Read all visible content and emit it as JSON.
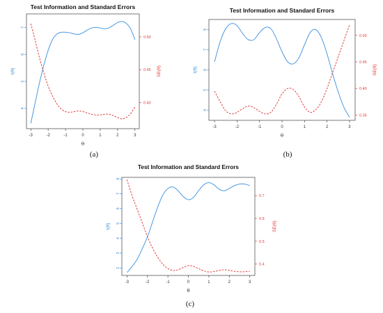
{
  "colors": {
    "info": "#4a98e0",
    "se": "#e03a3a",
    "left_axis_text": "#3a8edc",
    "right_axis_text": "#e03a3a",
    "frame": "#555555"
  },
  "chart_data": [
    {
      "id": "a",
      "type": "line",
      "title": "Test Information and Standard Errors",
      "caption": "(a)",
      "xlabel": "θ",
      "ylabel_left": "I(θ)",
      "ylabel_right": "SE(θ)",
      "xlim": [
        -3.25,
        3.25
      ],
      "ylim_left": [
        3.25,
        7.5
      ],
      "ylim_right": [
        0.36,
        0.535
      ],
      "x_ticks": [
        -3,
        -2,
        -1,
        0,
        1,
        2,
        3
      ],
      "y_ticks_left": [
        4,
        5,
        6,
        7
      ],
      "y_ticks_right": [
        0.4,
        0.45,
        0.5
      ],
      "y_ticks_right_labels": [
        "0.40",
        "0.45",
        "0.50"
      ],
      "grid": false,
      "series": [
        {
          "axis": "left",
          "style": "solid",
          "x": [
            -3,
            -2.75,
            -2.5,
            -2.25,
            -2,
            -1.75,
            -1.5,
            -1.25,
            -1,
            -0.75,
            -0.5,
            -0.25,
            0,
            0.25,
            0.5,
            0.75,
            1,
            1.25,
            1.5,
            1.75,
            2,
            2.25,
            2.5,
            2.75,
            3
          ],
          "y": [
            3.45,
            4.2,
            4.95,
            5.6,
            6.15,
            6.55,
            6.75,
            6.82,
            6.82,
            6.8,
            6.76,
            6.74,
            6.8,
            6.9,
            6.98,
            7.0,
            6.98,
            6.95,
            6.98,
            7.08,
            7.18,
            7.22,
            7.15,
            6.95,
            6.55
          ]
        },
        {
          "axis": "right",
          "style": "dashed",
          "x": [
            -3,
            -2.75,
            -2.5,
            -2.25,
            -2,
            -1.75,
            -1.5,
            -1.25,
            -1,
            -0.75,
            -0.5,
            -0.25,
            0,
            0.25,
            0.5,
            0.75,
            1,
            1.25,
            1.5,
            1.75,
            2,
            2.25,
            2.5,
            2.75,
            3
          ],
          "y": [
            0.52,
            0.495,
            0.468,
            0.445,
            0.425,
            0.41,
            0.398,
            0.39,
            0.386,
            0.385,
            0.386,
            0.387,
            0.386,
            0.384,
            0.382,
            0.381,
            0.381,
            0.382,
            0.382,
            0.38,
            0.377,
            0.375,
            0.377,
            0.383,
            0.393
          ]
        }
      ]
    },
    {
      "id": "b",
      "type": "line",
      "title": "Test Information and Standard Errors",
      "caption": "(b)",
      "xlabel": "θ",
      "ylabel_left": "I(θ)",
      "ylabel_right": "SE(θ)",
      "xlim": [
        -3.25,
        3.25
      ],
      "ylim_left": [
        3.5,
        8.5
      ],
      "ylim_right": [
        0.34,
        0.53
      ],
      "x_ticks": [
        -3,
        -2,
        -1,
        0,
        1,
        2,
        3
      ],
      "y_ticks_left": [
        4,
        5,
        6,
        7,
        8
      ],
      "y_ticks_right": [
        0.35,
        0.4,
        0.45,
        0.5
      ],
      "y_ticks_right_labels": [
        "0.35",
        "0.40",
        "0.45",
        "0.50"
      ],
      "grid": false,
      "series": [
        {
          "axis": "left",
          "style": "solid",
          "x": [
            -3,
            -2.75,
            -2.5,
            -2.25,
            -2,
            -1.75,
            -1.5,
            -1.25,
            -1,
            -0.75,
            -0.5,
            -0.25,
            0,
            0.25,
            0.5,
            0.75,
            1,
            1.25,
            1.5,
            1.75,
            2,
            2.25,
            2.5,
            2.75,
            3
          ],
          "y": [
            6.4,
            7.4,
            8.05,
            8.3,
            8.2,
            7.8,
            7.5,
            7.5,
            7.85,
            8.1,
            8.05,
            7.55,
            6.9,
            6.4,
            6.3,
            6.6,
            7.25,
            7.85,
            8.0,
            7.6,
            6.8,
            5.8,
            4.9,
            4.15,
            3.65
          ]
        },
        {
          "axis": "right",
          "style": "dashed",
          "x": [
            -3,
            -2.75,
            -2.5,
            -2.25,
            -2,
            -1.75,
            -1.5,
            -1.25,
            -1,
            -0.75,
            -0.5,
            -0.25,
            0,
            0.25,
            0.5,
            0.75,
            1,
            1.25,
            1.5,
            1.75,
            2,
            2.25,
            2.5,
            2.75,
            3
          ],
          "y": [
            0.395,
            0.375,
            0.358,
            0.352,
            0.355,
            0.362,
            0.367,
            0.364,
            0.357,
            0.352,
            0.355,
            0.37,
            0.39,
            0.4,
            0.398,
            0.385,
            0.365,
            0.355,
            0.36,
            0.375,
            0.4,
            0.43,
            0.46,
            0.49,
            0.52
          ]
        }
      ]
    },
    {
      "id": "c",
      "type": "line",
      "title": "Test Information and Standard Errors",
      "caption": "(c)",
      "xlabel": "θ",
      "ylabel_left": "I(θ)",
      "ylabel_right": "SE(θ)",
      "xlim": [
        -3.25,
        3.25
      ],
      "ylim_left": [
        1.5,
        8.1
      ],
      "ylim_right": [
        0.35,
        0.78
      ],
      "x_ticks": [
        -3,
        -2,
        -1,
        0,
        1,
        2,
        3
      ],
      "y_ticks_left": [
        2,
        3,
        4,
        5,
        6,
        7,
        8
      ],
      "y_ticks_right": [
        0.4,
        0.5,
        0.6,
        0.7
      ],
      "y_ticks_right_labels": [
        "0.4",
        "0.5",
        "0.6",
        "0.7"
      ],
      "grid": false,
      "series": [
        {
          "axis": "left",
          "style": "solid",
          "x": [
            -3,
            -2.75,
            -2.5,
            -2.25,
            -2,
            -1.75,
            -1.5,
            -1.25,
            -1,
            -0.75,
            -0.5,
            -0.25,
            0,
            0.25,
            0.5,
            0.75,
            1,
            1.25,
            1.5,
            1.75,
            2,
            2.25,
            2.5,
            2.75,
            3
          ],
          "y": [
            1.7,
            2.1,
            2.6,
            3.3,
            4.1,
            5.1,
            6.1,
            6.9,
            7.35,
            7.45,
            7.2,
            6.8,
            6.6,
            6.75,
            7.2,
            7.6,
            7.75,
            7.6,
            7.3,
            7.2,
            7.35,
            7.55,
            7.65,
            7.65,
            7.55
          ]
        },
        {
          "axis": "right",
          "style": "dashed",
          "x": [
            -3,
            -2.75,
            -2.5,
            -2.25,
            -2,
            -1.75,
            -1.5,
            -1.25,
            -1,
            -0.75,
            -0.5,
            -0.25,
            0,
            0.25,
            0.5,
            0.75,
            1,
            1.25,
            1.5,
            1.75,
            2,
            2.25,
            2.5,
            2.75,
            3
          ],
          "y": [
            0.77,
            0.7,
            0.64,
            0.58,
            0.52,
            0.47,
            0.43,
            0.4,
            0.38,
            0.372,
            0.375,
            0.385,
            0.393,
            0.39,
            0.38,
            0.37,
            0.365,
            0.367,
            0.372,
            0.375,
            0.372,
            0.368,
            0.366,
            0.366,
            0.368
          ]
        }
      ]
    }
  ]
}
